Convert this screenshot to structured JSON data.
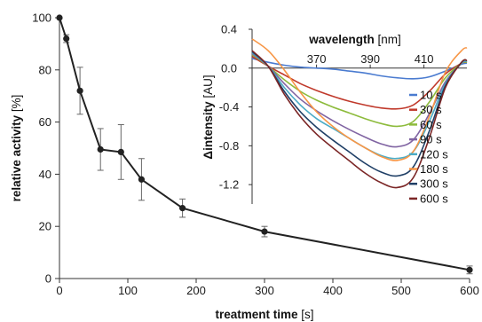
{
  "chart_data": [
    {
      "type": "line",
      "xlabel_main": "treatment time",
      "xlabel_unit": " [s]",
      "ylabel_main": "relative activity",
      "ylabel_unit": " [%]",
      "xlim": [
        0,
        600
      ],
      "ylim": [
        0,
        100
      ],
      "xticks": [
        0,
        100,
        200,
        300,
        400,
        500,
        600
      ],
      "yticks": [
        0,
        20,
        40,
        60,
        80,
        100
      ],
      "series": [
        {
          "x": [
            0,
            10,
            30,
            60,
            90,
            120,
            180,
            300,
            600
          ],
          "y": [
            100,
            92,
            72,
            49.5,
            48.5,
            38,
            27,
            18,
            3.3
          ],
          "error": [
            0,
            1.5,
            9,
            8,
            10.5,
            8,
            3.5,
            2,
            1.5
          ]
        }
      ],
      "color": "#222222"
    },
    {
      "type": "line",
      "xlabel_main": "wavelength",
      "xlabel_unit": " [nm]",
      "ylabel_main": "Δintensity",
      "ylabel_unit": " [AU]",
      "xlim": [
        346,
        426
      ],
      "ylim": [
        -1.4,
        0.4
      ],
      "xticks": [
        370,
        390,
        410
      ],
      "yticks": [
        0.4,
        0.0,
        -0.4,
        -0.8,
        -1.2
      ],
      "ytick_labels": [
        "0.4",
        "0.0",
        "-0.4",
        "-0.8",
        "-1.2"
      ],
      "series": [
        {
          "name": "10 s",
          "color": "#4a7bd0",
          "x": [
            346,
            352,
            358,
            364,
            370,
            376,
            382,
            388,
            394,
            400,
            406,
            412,
            418,
            424,
            426
          ],
          "y": [
            0.1,
            0.06,
            0.03,
            0.01,
            0.0,
            -0.01,
            -0.03,
            -0.05,
            -0.08,
            -0.1,
            -0.11,
            -0.09,
            -0.03,
            0.04,
            0.05
          ]
        },
        {
          "name": "30 s",
          "color": "#c0392b",
          "x": [
            346,
            352,
            358,
            364,
            370,
            376,
            382,
            388,
            394,
            400,
            406,
            412,
            418,
            424,
            426
          ],
          "y": [
            0.12,
            0.02,
            -0.07,
            -0.16,
            -0.23,
            -0.29,
            -0.34,
            -0.38,
            -0.41,
            -0.42,
            -0.38,
            -0.24,
            -0.06,
            0.05,
            0.06
          ]
        },
        {
          "name": "60 s",
          "color": "#8dbb3c",
          "x": [
            346,
            352,
            358,
            364,
            370,
            376,
            382,
            388,
            394,
            400,
            406,
            412,
            418,
            424,
            426
          ],
          "y": [
            0.14,
            0.02,
            -0.12,
            -0.24,
            -0.33,
            -0.4,
            -0.46,
            -0.52,
            -0.57,
            -0.6,
            -0.55,
            -0.35,
            -0.1,
            0.05,
            0.06
          ]
        },
        {
          "name": "90 s",
          "color": "#8064a2",
          "x": [
            346,
            352,
            358,
            364,
            370,
            376,
            382,
            388,
            394,
            400,
            406,
            412,
            418,
            424,
            426
          ],
          "y": [
            0.15,
            0.02,
            -0.16,
            -0.32,
            -0.44,
            -0.54,
            -0.63,
            -0.71,
            -0.78,
            -0.81,
            -0.74,
            -0.47,
            -0.14,
            0.05,
            0.07
          ]
        },
        {
          "name": "120 s",
          "color": "#4bacc6",
          "x": [
            346,
            352,
            358,
            364,
            370,
            376,
            382,
            388,
            394,
            400,
            406,
            412,
            418,
            424,
            426
          ],
          "y": [
            0.16,
            0.02,
            -0.2,
            -0.38,
            -0.52,
            -0.62,
            -0.72,
            -0.82,
            -0.9,
            -0.93,
            -0.86,
            -0.55,
            -0.16,
            0.05,
            0.07
          ]
        },
        {
          "name": "180 s",
          "color": "#f79646",
          "x": [
            346,
            352,
            358,
            364,
            370,
            376,
            382,
            388,
            394,
            400,
            406,
            412,
            418,
            424,
            426
          ],
          "y": [
            0.3,
            0.18,
            -0.02,
            -0.25,
            -0.45,
            -0.6,
            -0.72,
            -0.82,
            -0.91,
            -0.95,
            -0.86,
            -0.5,
            -0.04,
            0.18,
            0.21
          ]
        },
        {
          "name": "300 s",
          "color": "#1f3f66",
          "x": [
            346,
            352,
            358,
            364,
            370,
            376,
            382,
            388,
            394,
            400,
            406,
            412,
            418,
            424,
            426
          ],
          "y": [
            0.17,
            0.02,
            -0.24,
            -0.45,
            -0.61,
            -0.74,
            -0.86,
            -0.98,
            -1.07,
            -1.11,
            -1.02,
            -0.65,
            -0.18,
            0.06,
            0.08
          ]
        },
        {
          "name": "600 s",
          "color": "#7b2626",
          "x": [
            346,
            352,
            358,
            364,
            370,
            376,
            382,
            388,
            394,
            400,
            406,
            412,
            418,
            424,
            426
          ],
          "y": [
            0.18,
            0.02,
            -0.27,
            -0.5,
            -0.68,
            -0.82,
            -0.95,
            -1.08,
            -1.18,
            -1.23,
            -1.13,
            -0.72,
            -0.2,
            0.06,
            0.08
          ]
        }
      ]
    }
  ]
}
